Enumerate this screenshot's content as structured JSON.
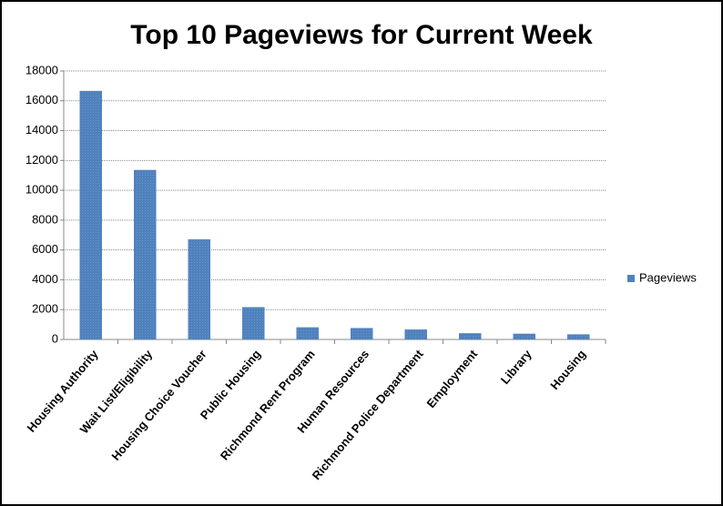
{
  "chart_data": {
    "type": "bar",
    "title": "Top 10 Pageviews for Current Week",
    "categories": [
      "Housing Authority",
      "Wait List/Eligibility",
      "Housing Choice Voucher",
      "Public Housing",
      "Richmond Rent Program",
      "Human Resources",
      "Richmond Police Department",
      "Employment",
      "Library",
      "Housing"
    ],
    "series": [
      {
        "name": "Pageviews",
        "color": "#4f81bd",
        "values": [
          16650,
          11350,
          6700,
          2150,
          800,
          750,
          650,
          400,
          370,
          330
        ]
      }
    ],
    "ylim": [
      0,
      18000
    ],
    "yticks": [
      0,
      2000,
      4000,
      6000,
      8000,
      10000,
      12000,
      14000,
      16000,
      18000
    ],
    "grid": true,
    "legend": "right"
  }
}
